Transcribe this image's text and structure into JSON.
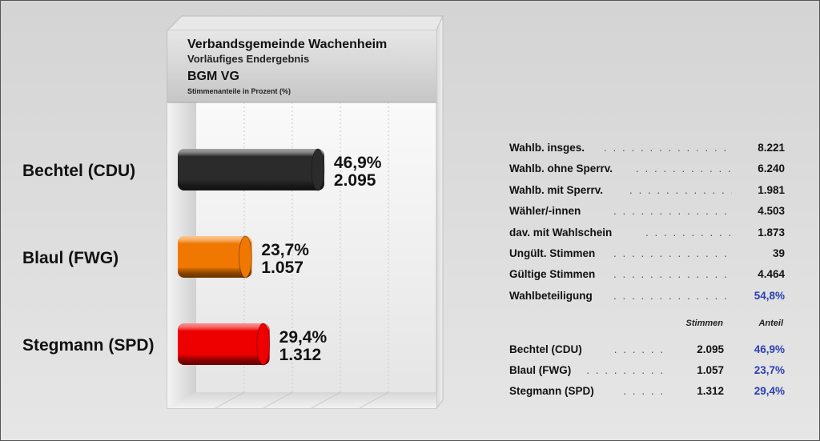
{
  "chart_data": {
    "type": "bar",
    "orientation": "horizontal",
    "title": "Verbandsgemeinde Wachenheim",
    "subtitle": "Vorläufiges Endergebnis",
    "election": "BGM VG",
    "ylabel": "Stimmenanteile in Prozent (%)",
    "categories": [
      "Bechtel (CDU)",
      "Blaul (FWG)",
      "Stegmann (SPD)"
    ],
    "values": [
      46.9,
      23.7,
      29.4
    ],
    "value_labels": [
      "46,9%",
      "23,7%",
      "29,4%"
    ],
    "votes": [
      2095,
      1057,
      1312
    ],
    "vote_labels": [
      "2.095",
      "1.057",
      "1.312"
    ],
    "colors": [
      "#2b2b2b",
      "#f07800",
      "#ee0000"
    ],
    "xlim": [
      0,
      100
    ],
    "grid": true,
    "legend": "none"
  },
  "stats": [
    {
      "label": "Wahlb. insges.",
      "value": "8.221"
    },
    {
      "label": "Wahlb. ohne Sperrv.",
      "value": "6.240"
    },
    {
      "label": "Wahlb. mit Sperrv.",
      "value": "1.981"
    },
    {
      "label": "Wähler/-innen",
      "value": "4.503"
    },
    {
      "label": "dav. mit Wahlschein",
      "value": "1.873"
    },
    {
      "label": "Ungült. Stimmen",
      "value": "39"
    },
    {
      "label": "Gültige Stimmen",
      "value": "4.464"
    },
    {
      "label": "Wahlbeteiligung",
      "value": "54,8%"
    }
  ],
  "results_header": {
    "votes": "Stimmen",
    "share": "Anteil"
  },
  "results": [
    {
      "name": "Bechtel (CDU)",
      "votes": "2.095",
      "share": "46,9%"
    },
    {
      "name": "Blaul (FWG)",
      "votes": "1.057",
      "share": "23,7%"
    },
    {
      "name": "Stegmann (SPD)",
      "votes": "1.312",
      "share": "29,4%"
    }
  ],
  "colors": {
    "accent_blue": "#2a3fb0"
  }
}
